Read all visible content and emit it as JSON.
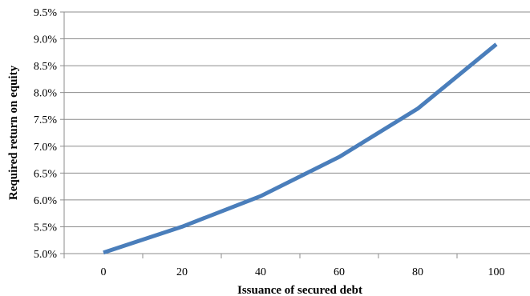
{
  "chart_data": {
    "type": "line",
    "title": "",
    "xlabel": "Issuance of secured debt",
    "ylabel": "Required return on equity",
    "x_ticks": [
      "0",
      "20",
      "40",
      "60",
      "80",
      "100"
    ],
    "y_ticks": [
      "5.0%",
      "5.5%",
      "6.0%",
      "6.5%",
      "7.0%",
      "7.5%",
      "8.0%",
      "8.5%",
      "9.0%",
      "9.5%"
    ],
    "xlim": [
      -10,
      110
    ],
    "ylim": [
      5.0,
      9.5
    ],
    "grid": {
      "horizontal": true,
      "vertical": false
    },
    "legend": "none",
    "series": [
      {
        "color": "#4a7ebb",
        "x": [
          0,
          20,
          40,
          60,
          80,
          100
        ],
        "values": [
          5.02,
          5.5,
          6.07,
          6.8,
          7.7,
          8.9
        ]
      }
    ]
  }
}
